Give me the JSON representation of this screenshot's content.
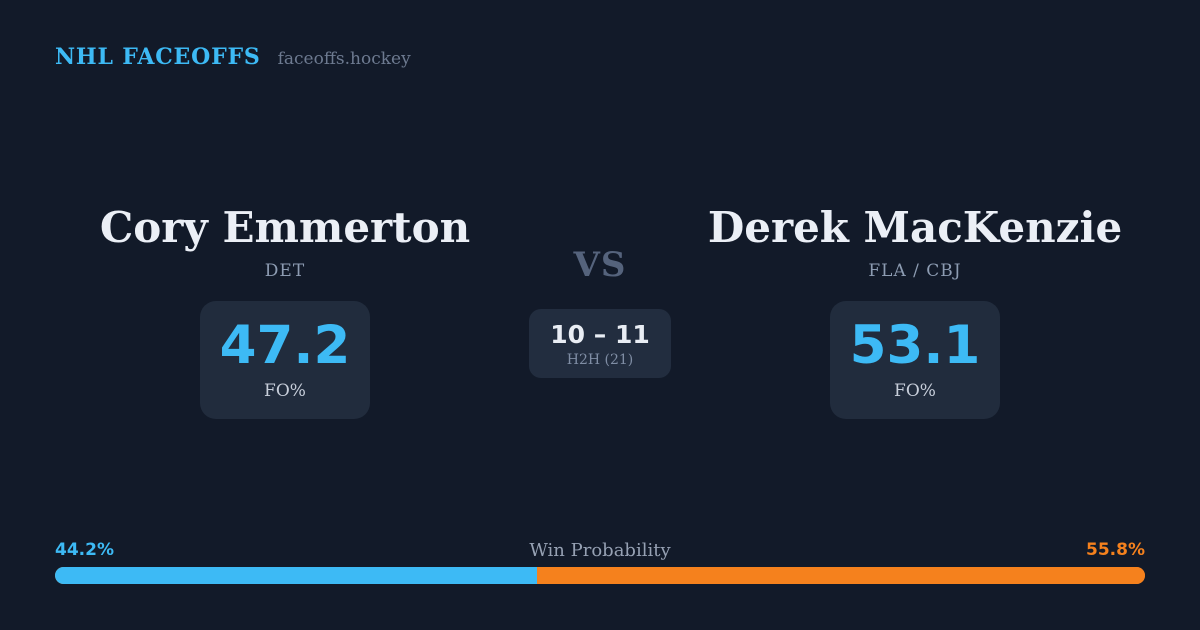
{
  "header": {
    "brand": "NHL FACEOFFS",
    "site": "faceoffs.hockey"
  },
  "players": {
    "left": {
      "name": "Cory Emmerton",
      "team": "DET",
      "fo_pct": "47.2",
      "fo_label": "FO%",
      "win_prob_label": "44.2%"
    },
    "right": {
      "name": "Derek MacKenzie",
      "team": "FLA / CBJ",
      "fo_pct": "53.1",
      "fo_label": "FO%",
      "win_prob_label": "55.8%"
    }
  },
  "center": {
    "vs": "VS",
    "h2h_score": "10 – 11",
    "h2h_label": "H2H (21)"
  },
  "win_probability": {
    "title": "Win Probability",
    "left_pct": 44.2,
    "right_pct": 55.8
  },
  "colors": {
    "background": "#121a29",
    "card": "#212c3d",
    "accent_blue": "#3dbaf5",
    "accent_orange": "#f5811d",
    "name_text": "#ebeff6",
    "muted_text": "#8d9cb2"
  },
  "chart_data": {
    "type": "bar",
    "title": "Win Probability",
    "categories": [
      "Cory Emmerton",
      "Derek MacKenzie"
    ],
    "series": [
      {
        "name": "Win Probability %",
        "values": [
          44.2,
          55.8
        ]
      },
      {
        "name": "Faceoff Win % (FO%)",
        "values": [
          47.2,
          53.1
        ]
      },
      {
        "name": "H2H Wins",
        "values": [
          10,
          11
        ]
      }
    ],
    "annotations": [
      "VS",
      "H2H (21)"
    ],
    "xlim": [
      0,
      100
    ],
    "legend_position": "none",
    "orientation": "horizontal-stacked"
  }
}
